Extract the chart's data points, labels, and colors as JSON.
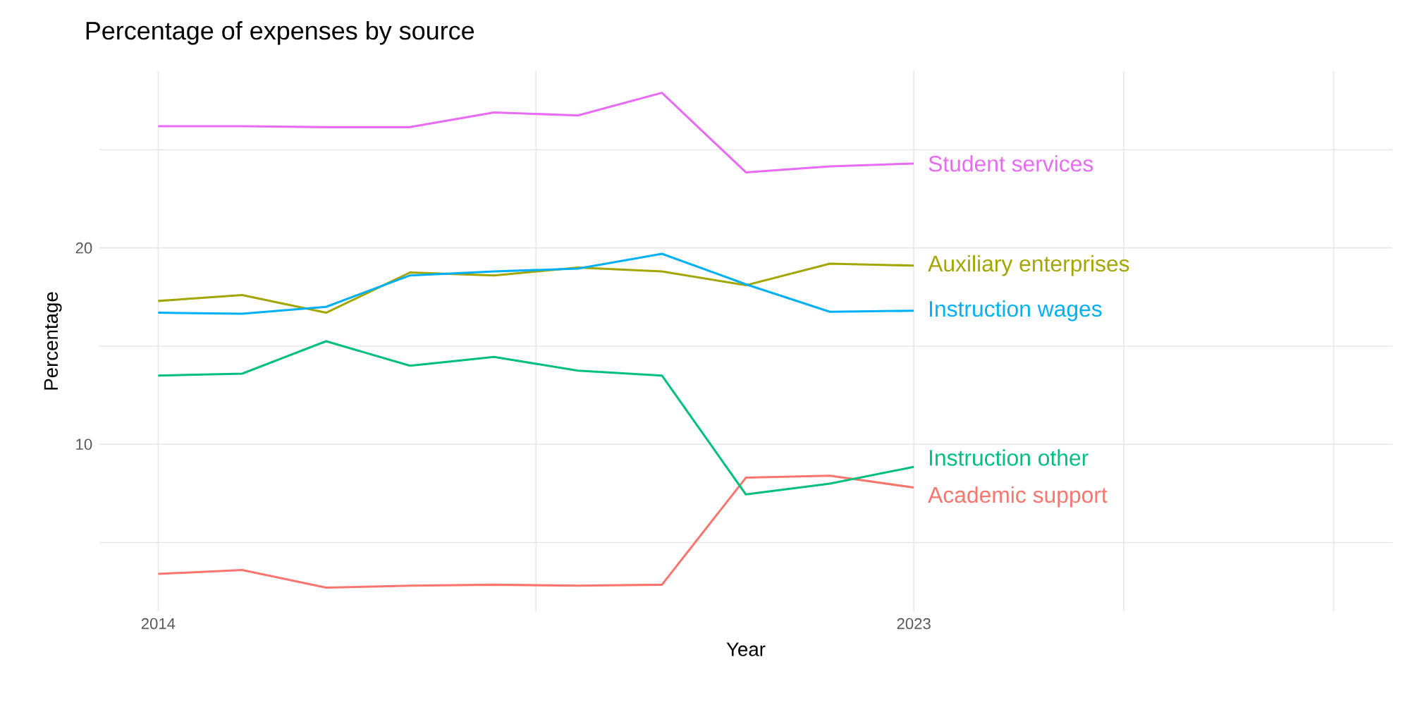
{
  "chart_data": {
    "type": "line",
    "title": "Percentage of expenses by source",
    "xlabel": "Year",
    "ylabel": "Percentage",
    "x": [
      2014,
      2015,
      2016,
      2017,
      2018,
      2019,
      2020,
      2021,
      2022,
      2023
    ],
    "series": [
      {
        "name": "Academic support",
        "color": "#f8766d",
        "values": [
          3.4,
          3.6,
          2.7,
          2.8,
          2.85,
          2.8,
          2.85,
          8.3,
          8.4,
          7.8
        ]
      },
      {
        "name": "Auxiliary enterprises",
        "color": "#a3a500",
        "values": [
          17.3,
          17.6,
          16.7,
          18.75,
          18.6,
          19.0,
          18.8,
          18.1,
          19.2,
          19.1
        ]
      },
      {
        "name": "Instruction other",
        "color": "#00bf7d",
        "values": [
          13.5,
          13.6,
          15.25,
          14.0,
          14.45,
          13.75,
          13.5,
          7.45,
          8.0,
          8.85
        ]
      },
      {
        "name": "Instruction wages",
        "color": "#00b0f6",
        "values": [
          16.7,
          16.65,
          17.0,
          18.6,
          18.8,
          18.95,
          19.7,
          18.15,
          16.75,
          16.8
        ]
      },
      {
        "name": "Student services",
        "color": "#e76bf3",
        "values": [
          26.2,
          26.2,
          26.15,
          26.15,
          26.9,
          26.75,
          27.9,
          23.85,
          24.15,
          24.3
        ]
      }
    ],
    "xlim": [
      2013.3,
      2028.7
    ],
    "ylim": [
      1.5,
      29
    ],
    "xticks": [
      2014,
      {
        "value": 2018.5,
        "label": null
      },
      2023,
      {
        "value": 2025.5,
        "label": null
      },
      {
        "value": 2028,
        "label": null
      }
    ],
    "yticks": [
      {
        "value": 5,
        "label": null
      },
      10,
      {
        "value": 15,
        "label": null
      },
      20,
      {
        "value": 25,
        "label": null
      }
    ],
    "grid": true,
    "legend": false,
    "marker": "none",
    "line_style": "solid"
  }
}
